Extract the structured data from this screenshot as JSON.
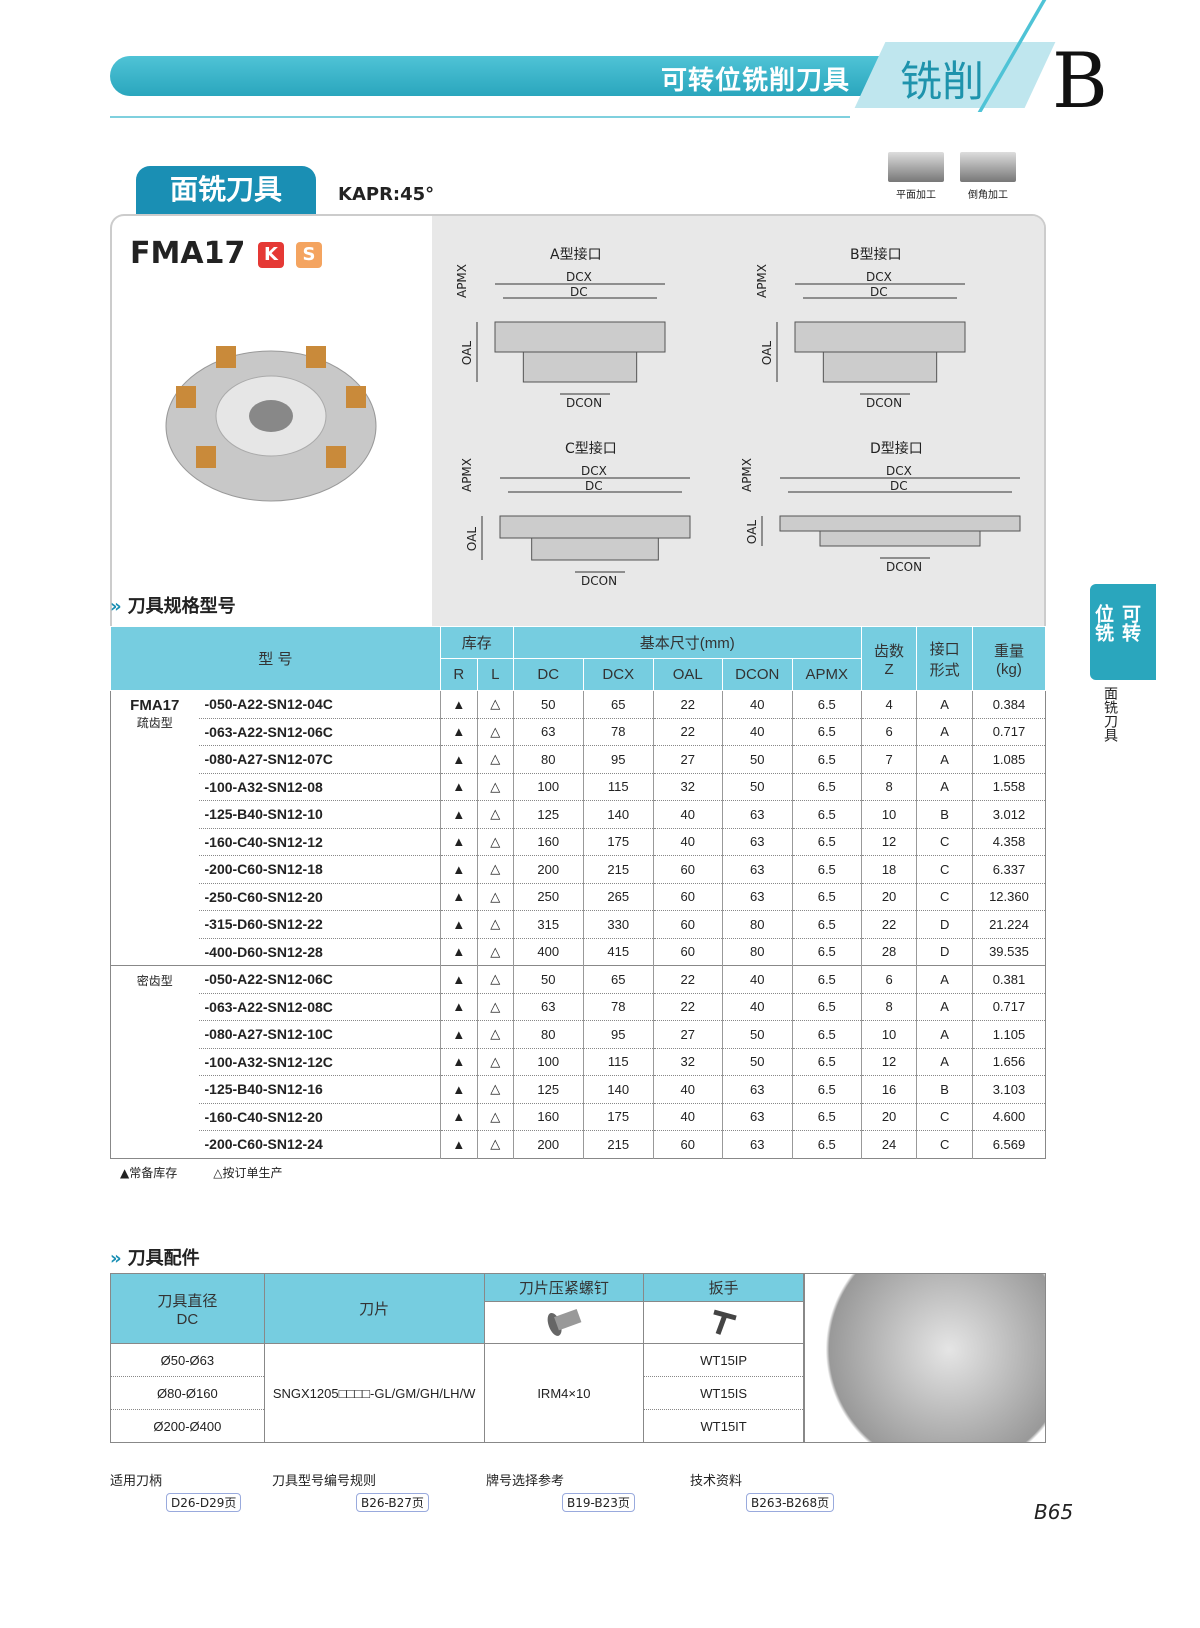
{
  "header": {
    "title": "可转位铣削刀具",
    "section": "铣削",
    "letter": "B"
  },
  "section_tab": "面铣刀具",
  "kapr": "KAPR:45°",
  "machining": [
    "平面加工",
    "倒角加工"
  ],
  "product": {
    "model": "FMA17",
    "badges": [
      {
        "label": "K",
        "color": "#e53935"
      },
      {
        "label": "S",
        "color": "#f4a460"
      }
    ]
  },
  "diagrams": [
    {
      "title": "A型接口",
      "labels": [
        "DCX",
        "DC",
        "APMX",
        "OAL",
        "DCON"
      ]
    },
    {
      "title": "B型接口",
      "labels": [
        "DCX",
        "DC",
        "APMX",
        "OAL",
        "DCON"
      ]
    },
    {
      "title": "C型接口",
      "labels": [
        "DCX",
        "DC",
        "APMX",
        "OAL",
        "DCON"
      ]
    },
    {
      "title": "D型接口",
      "labels": [
        "DCX",
        "DC",
        "APMX",
        "OAL",
        "DCON"
      ]
    }
  ],
  "spec": {
    "heading": "刀具规格型号",
    "headers": {
      "model": "型 号",
      "stock": "库存",
      "dims": "基本尺寸(mm)",
      "r": "R",
      "l": "L",
      "cols": [
        "DC",
        "DCX",
        "OAL",
        "DCON",
        "APMX"
      ],
      "z": "齿数\nZ",
      "iface": "接口\n形式",
      "weight": "重量\n(kg)"
    },
    "series": "FMA17",
    "groups": [
      {
        "label": "疏齿型",
        "rows": [
          [
            "-050-A22-SN12-04C",
            "▲",
            "△",
            "50",
            "65",
            "22",
            "40",
            "6.5",
            "4",
            "A",
            "0.384"
          ],
          [
            "-063-A22-SN12-06C",
            "▲",
            "△",
            "63",
            "78",
            "22",
            "40",
            "6.5",
            "6",
            "A",
            "0.717"
          ],
          [
            "-080-A27-SN12-07C",
            "▲",
            "△",
            "80",
            "95",
            "27",
            "50",
            "6.5",
            "7",
            "A",
            "1.085"
          ],
          [
            "-100-A32-SN12-08",
            "▲",
            "△",
            "100",
            "115",
            "32",
            "50",
            "6.5",
            "8",
            "A",
            "1.558"
          ],
          [
            "-125-B40-SN12-10",
            "▲",
            "△",
            "125",
            "140",
            "40",
            "63",
            "6.5",
            "10",
            "B",
            "3.012"
          ],
          [
            "-160-C40-SN12-12",
            "▲",
            "△",
            "160",
            "175",
            "40",
            "63",
            "6.5",
            "12",
            "C",
            "4.358"
          ],
          [
            "-200-C60-SN12-18",
            "▲",
            "△",
            "200",
            "215",
            "60",
            "63",
            "6.5",
            "18",
            "C",
            "6.337"
          ],
          [
            "-250-C60-SN12-20",
            "▲",
            "△",
            "250",
            "265",
            "60",
            "63",
            "6.5",
            "20",
            "C",
            "12.360"
          ],
          [
            "-315-D60-SN12-22",
            "▲",
            "△",
            "315",
            "330",
            "60",
            "80",
            "6.5",
            "22",
            "D",
            "21.224"
          ],
          [
            "-400-D60-SN12-28",
            "▲",
            "△",
            "400",
            "415",
            "60",
            "80",
            "6.5",
            "28",
            "D",
            "39.535"
          ]
        ]
      },
      {
        "label": "密齿型",
        "rows": [
          [
            "-050-A22-SN12-06C",
            "▲",
            "△",
            "50",
            "65",
            "22",
            "40",
            "6.5",
            "6",
            "A",
            "0.381"
          ],
          [
            "-063-A22-SN12-08C",
            "▲",
            "△",
            "63",
            "78",
            "22",
            "40",
            "6.5",
            "8",
            "A",
            "0.717"
          ],
          [
            "-080-A27-SN12-10C",
            "▲",
            "△",
            "80",
            "95",
            "27",
            "50",
            "6.5",
            "10",
            "A",
            "1.105"
          ],
          [
            "-100-A32-SN12-12C",
            "▲",
            "△",
            "100",
            "115",
            "32",
            "50",
            "6.5",
            "12",
            "A",
            "1.656"
          ],
          [
            "-125-B40-SN12-16",
            "▲",
            "△",
            "125",
            "140",
            "40",
            "63",
            "6.5",
            "16",
            "B",
            "3.103"
          ],
          [
            "-160-C40-SN12-20",
            "▲",
            "△",
            "160",
            "175",
            "40",
            "63",
            "6.5",
            "20",
            "C",
            "4.600"
          ],
          [
            "-200-C60-SN12-24",
            "▲",
            "△",
            "200",
            "215",
            "60",
            "63",
            "6.5",
            "24",
            "C",
            "6.569"
          ]
        ]
      }
    ],
    "legend": [
      "▲常备库存",
      "△按订单生产"
    ]
  },
  "accessories": {
    "heading": "刀具配件",
    "h_dia": "刀具直径\nDC",
    "h_insert": "刀片",
    "h_screw": "刀片压紧螺钉",
    "h_wrench": "扳手",
    "dias": [
      "Ø50-Ø63",
      "Ø80-Ø160",
      "Ø200-Ø400"
    ],
    "insert": "SNGX1205□□□□-GL/GM/GH/LH/W",
    "screw": "IRM4×10",
    "wrenches": [
      "WT15IP",
      "WT15IS",
      "WT15IT"
    ]
  },
  "links": [
    {
      "label": "适用刀柄",
      "page": "D26-D29页"
    },
    {
      "label": "刀具型号编号规则",
      "page": "B26-B27页"
    },
    {
      "label": "牌号选择参考",
      "page": "B19-B23页"
    },
    {
      "label": "技术资料",
      "page": "B263-B268页"
    }
  ],
  "side": {
    "tab": "可转位铣削",
    "sub": "面铣刀具"
  },
  "page_number": "B65"
}
